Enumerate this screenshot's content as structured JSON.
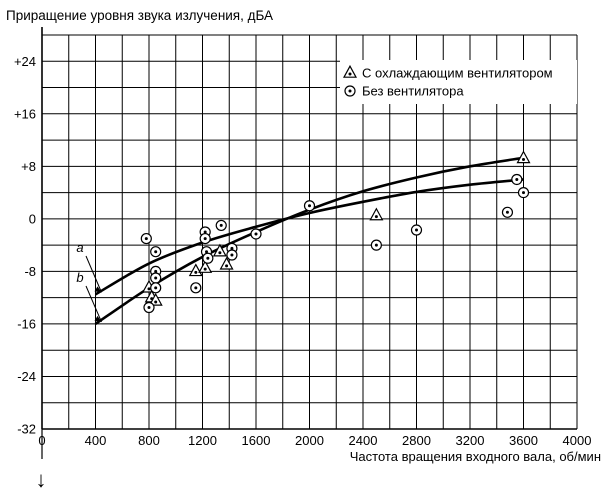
{
  "chart_data": {
    "type": "scatter",
    "ylabel": "Приращение уровня звука излучения, дБА",
    "xlabel": "Частота вращения входного вала, об/мин",
    "xlim": [
      0,
      4000
    ],
    "ylim": [
      -32,
      28
    ],
    "xticks": [
      0,
      400,
      800,
      1200,
      1600,
      2000,
      2400,
      2800,
      3200,
      3600,
      4000
    ],
    "xtick_labels": [
      "0",
      "400",
      "800",
      "1200",
      "1600",
      "2000",
      "2400",
      "2800",
      "3200",
      "3600",
      "4000"
    ],
    "yticks": [
      -32,
      -24,
      -16,
      -8,
      0,
      8,
      16,
      24
    ],
    "ytick_labels": [
      "-32",
      "-24",
      "-16",
      "-8",
      "0",
      "+8",
      "+16",
      "+24"
    ],
    "grid": true,
    "legend_position": "top-right",
    "series": [
      {
        "name": "С охлаждающим вентилятором",
        "marker": "triangle-dot",
        "points": [
          [
            800,
            -10.5
          ],
          [
            820,
            -12
          ],
          [
            850,
            -12.5
          ],
          [
            1150,
            -8
          ],
          [
            1220,
            -7.5
          ],
          [
            1330,
            -5
          ],
          [
            1380,
            -7
          ],
          [
            2500,
            0.5
          ],
          [
            3600,
            9.2
          ]
        ]
      },
      {
        "name": "Без вентилятора",
        "marker": "circle-dot",
        "points": [
          [
            780,
            -3
          ],
          [
            800,
            -13.5
          ],
          [
            850,
            -5
          ],
          [
            850,
            -8
          ],
          [
            850,
            -9
          ],
          [
            850,
            -10.5
          ],
          [
            1150,
            -10.5
          ],
          [
            1220,
            -2
          ],
          [
            1220,
            -3
          ],
          [
            1230,
            -5
          ],
          [
            1240,
            -6
          ],
          [
            1340,
            -1
          ],
          [
            1420,
            -4.5
          ],
          [
            1420,
            -5.5
          ],
          [
            1600,
            -2.3
          ],
          [
            2000,
            2
          ],
          [
            2500,
            -4
          ],
          [
            2800,
            -1.7
          ],
          [
            3480,
            1
          ],
          [
            3550,
            6
          ],
          [
            3600,
            4
          ]
        ]
      }
    ],
    "curves": [
      {
        "label": "a",
        "points": [
          [
            400,
            -11.5
          ],
          [
            800,
            -6.8
          ],
          [
            1200,
            -3.6
          ],
          [
            1600,
            -1.2
          ],
          [
            2000,
            0.9
          ],
          [
            2400,
            2.6
          ],
          [
            2800,
            4.1
          ],
          [
            3200,
            5.2
          ],
          [
            3600,
            6
          ]
        ]
      },
      {
        "label": "b",
        "points": [
          [
            400,
            -16
          ],
          [
            800,
            -10.5
          ],
          [
            1200,
            -5.8
          ],
          [
            1600,
            -2
          ],
          [
            2000,
            1.4
          ],
          [
            2400,
            4.2
          ],
          [
            2800,
            6.3
          ],
          [
            3200,
            8
          ],
          [
            3600,
            9.3
          ]
        ]
      }
    ],
    "arrow_glyph": "↓"
  }
}
